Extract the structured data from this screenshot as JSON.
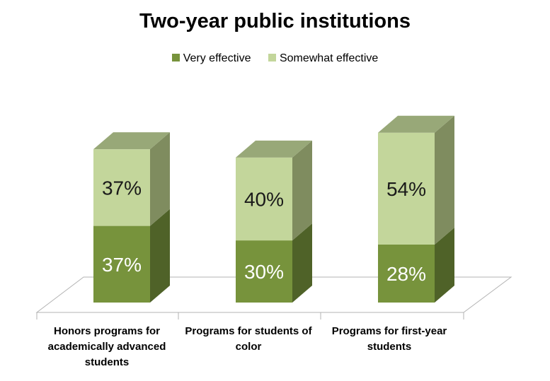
{
  "chart_data": {
    "type": "bar",
    "stacked": true,
    "three_d": true,
    "title": "Two-year public institutions",
    "categories": [
      "Honors programs for academically advanced students",
      "Programs for students of color",
      "Programs for first-year students"
    ],
    "series": [
      {
        "name": "Very effective",
        "values": [
          37,
          30,
          28
        ],
        "labels": [
          "37%",
          "30%",
          "28%"
        ],
        "color": "#77933c"
      },
      {
        "name": "Somewhat effective",
        "values": [
          37,
          40,
          54
        ],
        "labels": [
          "37%",
          "40%",
          "54%"
        ],
        "color": "#c3d69b"
      }
    ],
    "legend_position": "top",
    "grid": false
  }
}
